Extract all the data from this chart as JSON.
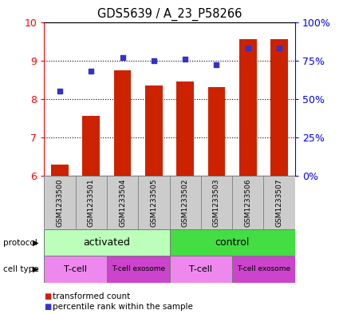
{
  "title": "GDS5639 / A_23_P58266",
  "samples": [
    "GSM1233500",
    "GSM1233501",
    "GSM1233504",
    "GSM1233505",
    "GSM1233502",
    "GSM1233503",
    "GSM1233506",
    "GSM1233507"
  ],
  "transformed_counts": [
    6.3,
    7.55,
    8.75,
    8.35,
    8.45,
    8.3,
    9.55,
    9.55
  ],
  "percentile_ranks": [
    55,
    68,
    77,
    75,
    76,
    72,
    83,
    83
  ],
  "ylim_left": [
    6,
    10
  ],
  "ylim_right": [
    0,
    100
  ],
  "yticks_left": [
    6,
    7,
    8,
    9,
    10
  ],
  "yticks_right": [
    0,
    25,
    50,
    75,
    100
  ],
  "ytick_right_labels": [
    "0%",
    "25%",
    "50%",
    "75%",
    "100%"
  ],
  "bar_color": "#cc2200",
  "dot_color": "#3333cc",
  "bar_bottom": 6,
  "protocol_groups": [
    {
      "label": "activated",
      "start": 0,
      "end": 4,
      "color": "#bbffbb"
    },
    {
      "label": "control",
      "start": 4,
      "end": 8,
      "color": "#44dd44"
    }
  ],
  "cell_type_groups": [
    {
      "label": "T-cell",
      "start": 0,
      "end": 2,
      "color": "#ee88ee"
    },
    {
      "label": "T-cell exosome",
      "start": 2,
      "end": 4,
      "color": "#cc44cc"
    },
    {
      "label": "T-cell",
      "start": 4,
      "end": 6,
      "color": "#ee88ee"
    },
    {
      "label": "T-cell exosome",
      "start": 6,
      "end": 8,
      "color": "#cc44cc"
    }
  ],
  "legend_items": [
    {
      "label": "transformed count",
      "color": "#cc2200"
    },
    {
      "label": "percentile rank within the sample",
      "color": "#3333cc"
    }
  ],
  "left_labels": [
    "protocol",
    "cell type"
  ]
}
